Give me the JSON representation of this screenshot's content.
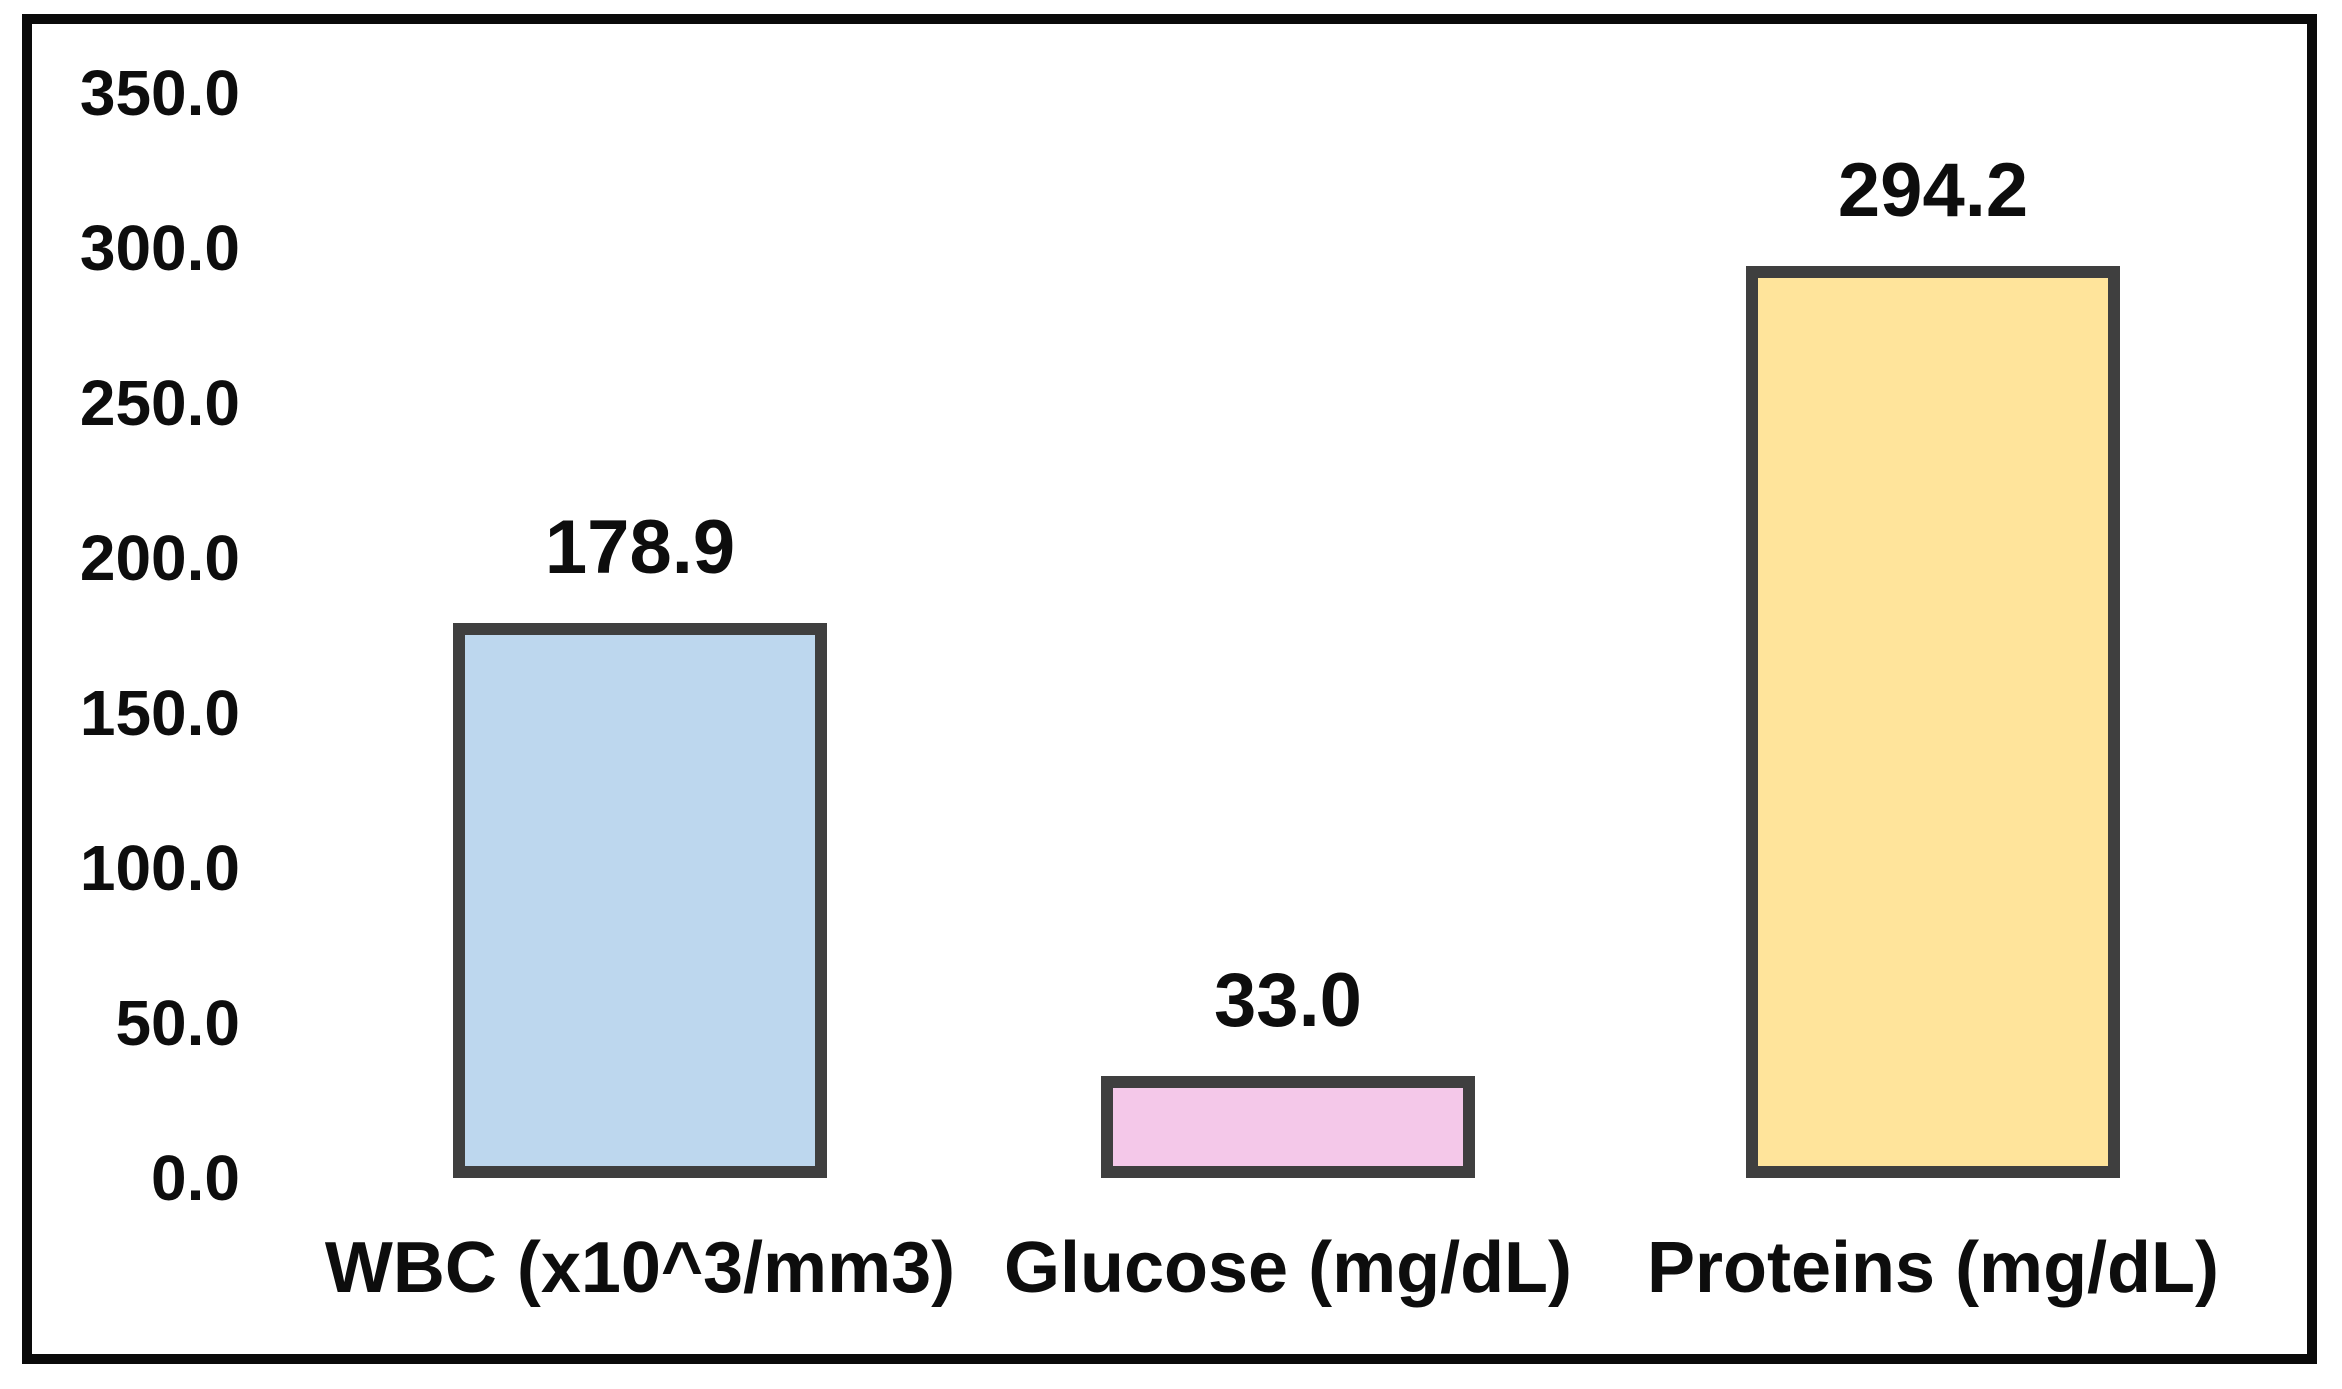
{
  "chart_data": {
    "type": "bar",
    "categories": [
      "WBC (x10^3/mm3)",
      "Glucose (mg/dL)",
      "Proteins (mg/dL)"
    ],
    "values": [
      178.9,
      33.0,
      294.2
    ],
    "data_labels": [
      "178.9",
      "33.0",
      "294.2"
    ],
    "title": "",
    "xlabel": "",
    "ylabel": "",
    "ylim": [
      0,
      350
    ],
    "y_tick_step": 50,
    "y_tick_labels": [
      "350.0",
      "300.0",
      "250.0",
      "200.0",
      "150.0",
      "100.0",
      "50.0",
      "0.0"
    ],
    "grid": false,
    "legend": false,
    "axis_lines": false,
    "bar_fill_colors": [
      "#BDD7EE",
      "#F4C8E9",
      "#FFE49B"
    ],
    "bar_border_color": "#3F3F3F",
    "frame_border_color": "#0A0A0A",
    "background_color": "#FFFFFF",
    "text_color": "#0D0D0D"
  }
}
